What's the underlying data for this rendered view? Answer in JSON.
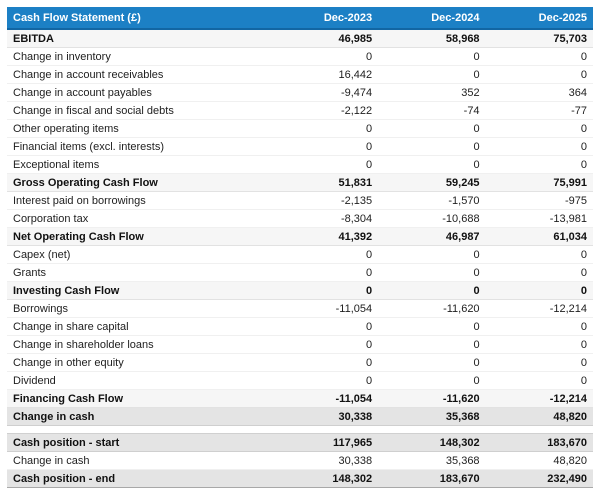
{
  "colors": {
    "header_bg": "#1c80c5",
    "header_text": "#ffffff",
    "subtotal_row_bg": "#f6f6f6",
    "total_row_bg": "#e4e4e4",
    "body_text": "#1e1e1e"
  },
  "chart_data": {
    "type": "table",
    "title": "Cash Flow Statement (£)",
    "columns": [
      "Dec-2023",
      "Dec-2024",
      "Dec-2025"
    ],
    "rows": [
      {
        "label": "EBITDA",
        "values": [
          "46,985",
          "58,968",
          "75,703"
        ],
        "style": "subtotal"
      },
      {
        "label": "Change in inventory",
        "values": [
          "0",
          "0",
          "0"
        ],
        "style": "plain"
      },
      {
        "label": "Change in account receivables",
        "values": [
          "16,442",
          "0",
          "0"
        ],
        "style": "plain"
      },
      {
        "label": "Change in account payables",
        "values": [
          "-9,474",
          "352",
          "364"
        ],
        "style": "plain"
      },
      {
        "label": "Change in fiscal and social debts",
        "values": [
          "-2,122",
          "-74",
          "-77"
        ],
        "style": "plain"
      },
      {
        "label": "Other operating items",
        "values": [
          "0",
          "0",
          "0"
        ],
        "style": "plain"
      },
      {
        "label": "Financial items (excl. interests)",
        "values": [
          "0",
          "0",
          "0"
        ],
        "style": "plain"
      },
      {
        "label": "Exceptional items",
        "values": [
          "0",
          "0",
          "0"
        ],
        "style": "plain"
      },
      {
        "label": "Gross Operating Cash Flow",
        "values": [
          "51,831",
          "59,245",
          "75,991"
        ],
        "style": "subtotal"
      },
      {
        "label": "Interest paid on borrowings",
        "values": [
          "-2,135",
          "-1,570",
          "-975"
        ],
        "style": "plain"
      },
      {
        "label": "Corporation tax",
        "values": [
          "-8,304",
          "-10,688",
          "-13,981"
        ],
        "style": "plain"
      },
      {
        "label": "Net Operating Cash Flow",
        "values": [
          "41,392",
          "46,987",
          "61,034"
        ],
        "style": "subtotal"
      },
      {
        "label": "Capex (net)",
        "values": [
          "0",
          "0",
          "0"
        ],
        "style": "plain"
      },
      {
        "label": "Grants",
        "values": [
          "0",
          "0",
          "0"
        ],
        "style": "plain"
      },
      {
        "label": "Investing Cash Flow",
        "values": [
          "0",
          "0",
          "0"
        ],
        "style": "subtotal"
      },
      {
        "label": "Borrowings",
        "values": [
          "-11,054",
          "-11,620",
          "-12,214"
        ],
        "style": "plain"
      },
      {
        "label": "Change in share capital",
        "values": [
          "0",
          "0",
          "0"
        ],
        "style": "plain"
      },
      {
        "label": "Change in shareholder loans",
        "values": [
          "0",
          "0",
          "0"
        ],
        "style": "plain"
      },
      {
        "label": "Change in other equity",
        "values": [
          "0",
          "0",
          "0"
        ],
        "style": "plain"
      },
      {
        "label": "Dividend",
        "values": [
          "0",
          "0",
          "0"
        ],
        "style": "plain"
      },
      {
        "label": "Financing Cash Flow",
        "values": [
          "-11,054",
          "-11,620",
          "-12,214"
        ],
        "style": "subtotal"
      },
      {
        "label": "Change in cash",
        "values": [
          "30,338",
          "35,368",
          "48,820"
        ],
        "style": "total"
      },
      {
        "label": "Cash position - start",
        "values": [
          "117,965",
          "148,302",
          "183,670"
        ],
        "style": "total",
        "spacer_before": true
      },
      {
        "label": "Change in cash",
        "values": [
          "30,338",
          "35,368",
          "48,820"
        ],
        "style": "plain"
      },
      {
        "label": "Cash position - end",
        "values": [
          "148,302",
          "183,670",
          "232,490"
        ],
        "style": "total"
      }
    ],
    "layout": {
      "grid": "horizontal-row-separators",
      "value_alignment": "right",
      "header_position": "top"
    }
  }
}
